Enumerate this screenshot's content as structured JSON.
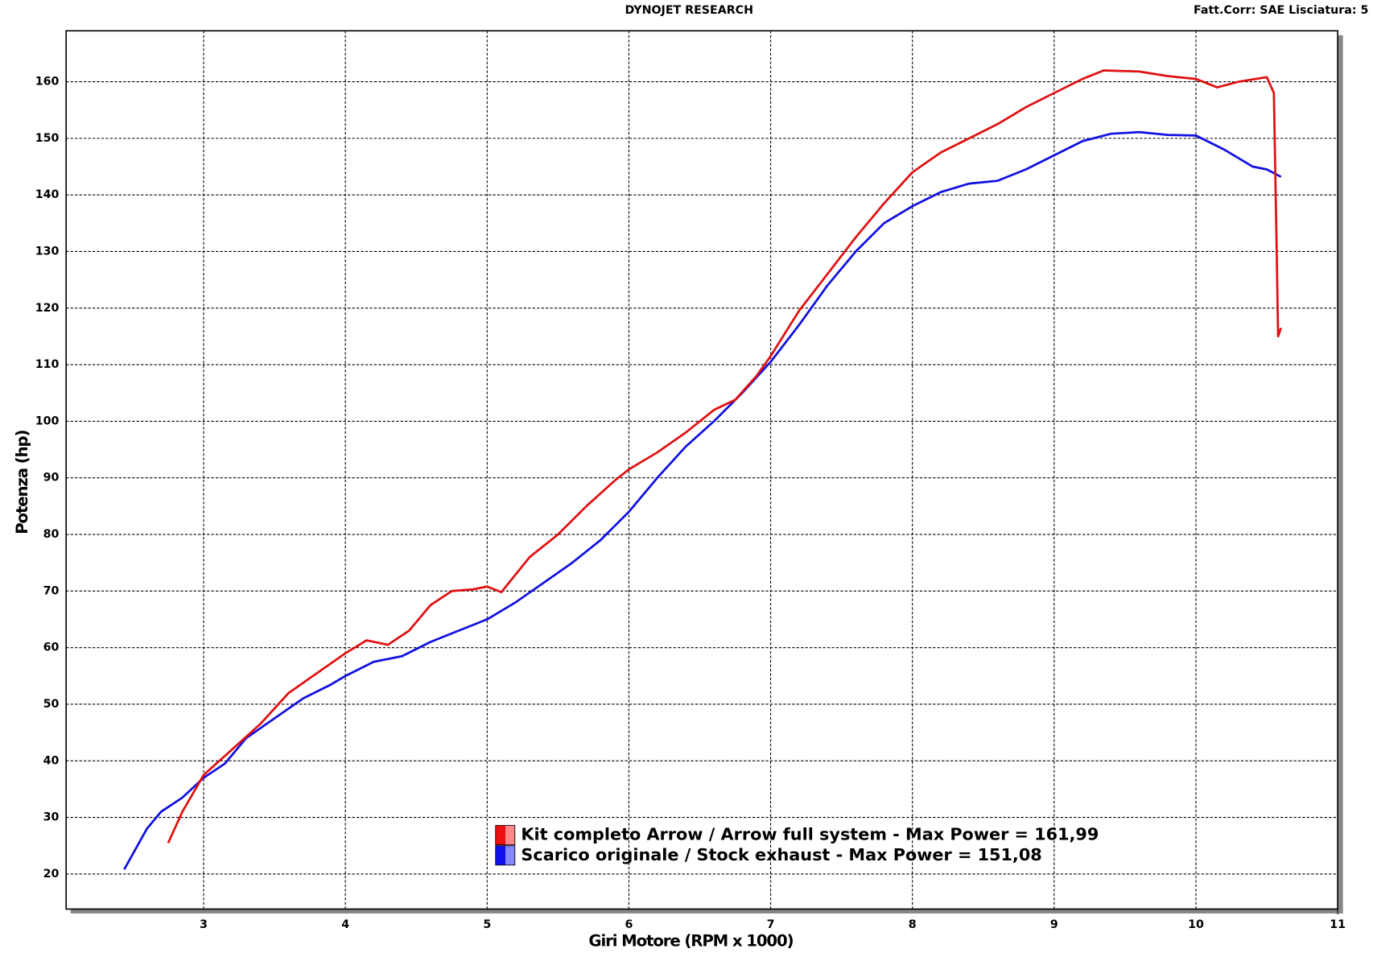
{
  "chart_data": {
    "type": "line",
    "title": "DYNOJET RESEARCH",
    "subtitle": "Fatt.Corr: SAE  Lisciatura: 5",
    "x_label": "Giri Motore (RPM x 1000)",
    "y_label": "Potenza (hp)",
    "xlim": [
      2.03,
      11
    ],
    "ylim": [
      13.8,
      169
    ],
    "xticks": [
      3,
      4,
      5,
      6,
      7,
      8,
      9,
      10,
      11
    ],
    "yticks": [
      20,
      30,
      40,
      50,
      60,
      70,
      80,
      90,
      100,
      110,
      120,
      130,
      140,
      150,
      160
    ],
    "grid": true,
    "series": [
      {
        "name": "Kit completo Arrow / Arrow full system - Max Power = 161,99",
        "color": "#e01010",
        "x": [
          2.75,
          2.85,
          3.0,
          3.2,
          3.4,
          3.6,
          3.8,
          4.0,
          4.15,
          4.3,
          4.45,
          4.6,
          4.75,
          4.9,
          5.0,
          5.1,
          5.3,
          5.5,
          5.7,
          5.9,
          6.0,
          6.2,
          6.4,
          6.6,
          6.75,
          6.9,
          7.0,
          7.2,
          7.4,
          7.6,
          7.8,
          8.0,
          8.2,
          8.4,
          8.6,
          8.8,
          9.0,
          9.2,
          9.35,
          9.6,
          9.8,
          10.0,
          10.15,
          10.3,
          10.5,
          10.55,
          10.57,
          10.58,
          10.6
        ],
        "values": [
          25.5,
          31,
          37.5,
          42,
          46.5,
          52,
          55.5,
          59,
          61.3,
          60.5,
          63,
          67.5,
          70,
          70.3,
          70.8,
          69.8,
          76,
          80,
          85,
          89.5,
          91.5,
          94.5,
          98,
          102,
          103.8,
          108,
          111.5,
          119.5,
          126,
          132.5,
          138.5,
          144,
          147.5,
          150,
          152.5,
          155.5,
          158,
          160.5,
          162,
          161.8,
          161,
          160.5,
          159,
          160,
          160.8,
          158,
          130,
          115,
          116.5
        ]
      },
      {
        "name": "Scarico originale / Stock exhaust - Max Power = 151,08",
        "color": "#1010e0",
        "x": [
          2.44,
          2.6,
          2.7,
          2.85,
          3.0,
          3.15,
          3.3,
          3.5,
          3.7,
          3.9,
          4.0,
          4.2,
          4.4,
          4.6,
          4.8,
          5.0,
          5.2,
          5.4,
          5.6,
          5.8,
          6.0,
          6.2,
          6.4,
          6.6,
          6.8,
          7.0,
          7.2,
          7.4,
          7.6,
          7.8,
          8.0,
          8.2,
          8.4,
          8.6,
          8.8,
          9.0,
          9.2,
          9.4,
          9.6,
          9.8,
          10.0,
          10.2,
          10.4,
          10.5,
          10.6
        ],
        "values": [
          20.8,
          28,
          31,
          33.5,
          37,
          39.5,
          44,
          47.5,
          51,
          53.5,
          55,
          57.5,
          58.5,
          61,
          63,
          65,
          68,
          71.5,
          75,
          79,
          84,
          90,
          95.5,
          100,
          105,
          110.5,
          117,
          124,
          130,
          135,
          138,
          140.5,
          142,
          142.5,
          144.5,
          147,
          149.5,
          150.8,
          151.1,
          150.6,
          150.5,
          148,
          145,
          144.5,
          143.2
        ]
      }
    ]
  }
}
